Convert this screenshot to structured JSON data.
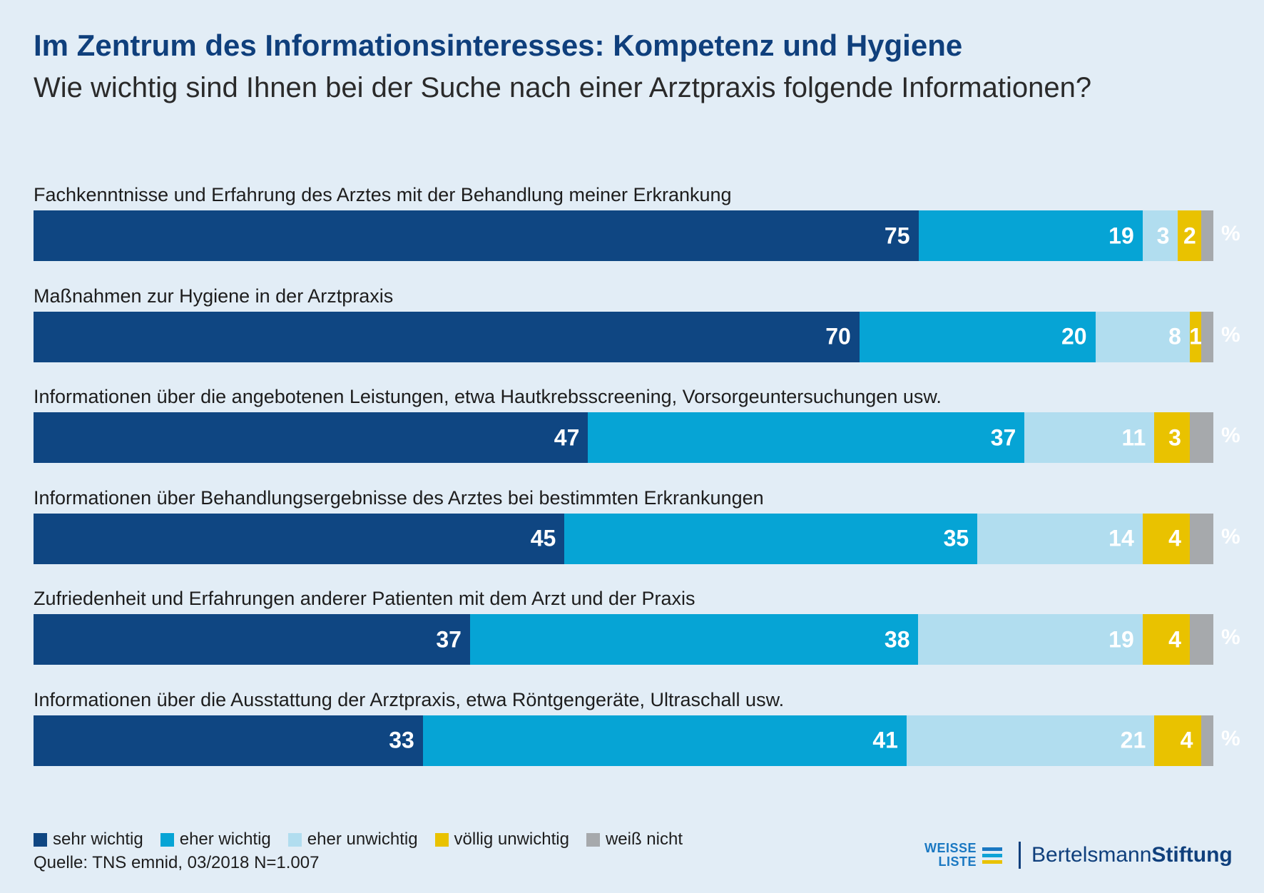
{
  "colors": {
    "background": "#e2edf6",
    "title": "#0f3f7c",
    "sehr_wichtig": "#0f4682",
    "eher_wichtig": "#06a4d5",
    "eher_unwichtig": "#b1ddef",
    "voellig_unwichtig": "#e9c200",
    "weiss_nicht": "#a6a9ac"
  },
  "chart_data": {
    "type": "bar",
    "orientation": "horizontal",
    "stacked": true,
    "title": "Im Zentrum des Informationsinteresses: Kompetenz und Hygiene",
    "subtitle": "Wie wichtig sind Ihnen bei der Suche nach einer Arztpraxis folgende Informationen?",
    "unit_label": "%",
    "categories": [
      "Fachkenntnisse und Erfahrung des Arztes mit der Behandlung meiner Erkrankung",
      "Maßnahmen zur Hygiene in der Arztpraxis",
      "Informationen über die angebotenen Leistungen, etwa Hautkrebsscreening, Vorsorgeuntersuchungen usw.",
      "Informationen über Behandlungsergebnisse des Arztes bei bestimmten Erkrankungen",
      "Zufriedenheit und Erfahrungen anderer Patienten mit dem Arzt und der Praxis",
      "Informationen über die Ausstattung der Arztpraxis, etwa Röntgengeräte, Ultraschall usw."
    ],
    "series": [
      {
        "name": "sehr wichtig",
        "color": "#0f4682",
        "values": [
          75,
          70,
          47,
          45,
          37,
          33
        ]
      },
      {
        "name": "eher wichtig",
        "color": "#06a4d5",
        "values": [
          19,
          20,
          37,
          35,
          38,
          41
        ]
      },
      {
        "name": "eher unwichtig",
        "color": "#b1ddef",
        "values": [
          3,
          8,
          11,
          14,
          19,
          21
        ]
      },
      {
        "name": "völlig unwichtig",
        "color": "#e9c200",
        "values": [
          2,
          1,
          3,
          4,
          4,
          4
        ]
      },
      {
        "name": "weiß nicht",
        "color": "#a6a9ac",
        "values": [
          1,
          1,
          2,
          2,
          2,
          1
        ]
      }
    ],
    "shown_labels": [
      [
        "75",
        "19",
        "3",
        "2",
        ""
      ],
      [
        "70",
        "20",
        "8",
        "1",
        ""
      ],
      [
        "47",
        "37",
        "11",
        "3",
        ""
      ],
      [
        "45",
        "35",
        "14",
        "4",
        ""
      ],
      [
        "37",
        "38",
        "19",
        "4",
        ""
      ],
      [
        "33",
        "41",
        "21",
        "4",
        ""
      ]
    ],
    "legend_position": "bottom-left"
  },
  "source": "Quelle: TNS emnid, 03/2018 N=1.007",
  "logos": {
    "weisse_liste_line1": "WEISSE",
    "weisse_liste_line2": "LISTE",
    "bertelsmann_regular": "Bertelsmann",
    "bertelsmann_bold": "Stiftung"
  }
}
